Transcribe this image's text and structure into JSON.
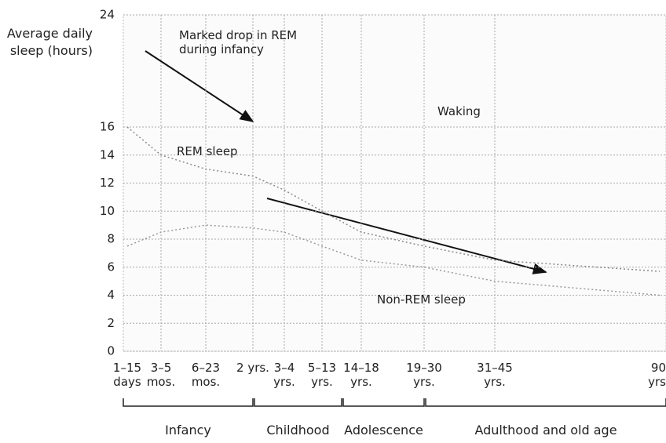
{
  "chart_data": {
    "type": "line",
    "y_label": "Average daily sleep (hours)",
    "categories": [
      "1–15 days",
      "3–5 mos.",
      "6–23 mos.",
      "2 yrs.",
      "3–4 yrs.",
      "5–13 yrs.",
      "14–18 yrs.",
      "19–30 yrs.",
      "31–45 yrs.",
      "90 yrs"
    ],
    "series": [
      {
        "color": "#8a8a8a",
        "values": [
          16,
          14,
          13,
          12.5,
          11.5,
          10,
          8.5,
          7.5,
          6.5,
          5.7
        ]
      },
      {
        "color": "#9a9a9a",
        "values": [
          7.5,
          8.5,
          9,
          8.8,
          8.5,
          7.5,
          6.5,
          6,
          5,
          4
        ]
      }
    ],
    "ylim": [
      0,
      24
    ],
    "yticks": [
      0,
      2,
      4,
      6,
      8,
      10,
      12,
      14,
      16,
      24
    ],
    "grid": true,
    "annotations": [
      "Marked drop in REM during infancy",
      "REM sleep",
      "Waking",
      "Non-REM sleep"
    ],
    "groups": [
      "Infancy",
      "Childhood",
      "Adolescence",
      "Adulthood and old age"
    ]
  }
}
